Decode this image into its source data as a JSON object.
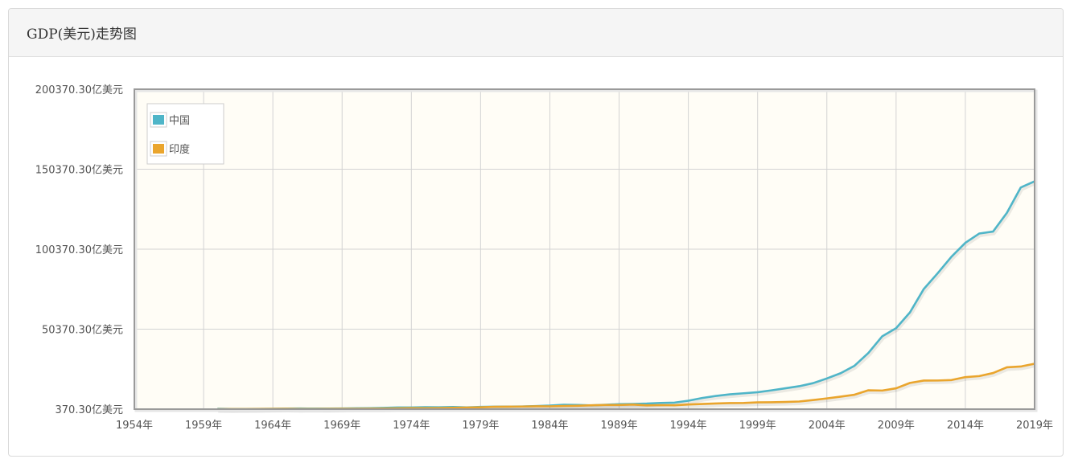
{
  "panel": {
    "title": "GDP(美元)走势图"
  },
  "colors": {
    "china": "#4fb5c8",
    "india": "#eaa52d",
    "plot_bg": "#fffdf6",
    "grid": "#d3d3d3"
  },
  "chart_data": {
    "type": "line",
    "title": "",
    "xlabel": "",
    "ylabel": "",
    "xlim": [
      1954,
      2019
    ],
    "ylim": [
      370.3,
      200370.3
    ],
    "grid": true,
    "legend_position": "top-left",
    "y_ticks": [
      {
        "value": 370.3,
        "label": "370.30亿美元"
      },
      {
        "value": 50370.3,
        "label": "50370.30亿美元"
      },
      {
        "value": 100370.3,
        "label": "100370.30亿美元"
      },
      {
        "value": 150370.3,
        "label": "150370.30亿美元"
      },
      {
        "value": 200370.3,
        "label": "200370.30亿美元"
      }
    ],
    "x_ticks": [
      {
        "value": 1954,
        "label": "1954年"
      },
      {
        "value": 1959,
        "label": "1959年"
      },
      {
        "value": 1964,
        "label": "1964年"
      },
      {
        "value": 1969,
        "label": "1969年"
      },
      {
        "value": 1974,
        "label": "1974年"
      },
      {
        "value": 1979,
        "label": "1979年"
      },
      {
        "value": 1984,
        "label": "1984年"
      },
      {
        "value": 1989,
        "label": "1989年"
      },
      {
        "value": 1994,
        "label": "1994年"
      },
      {
        "value": 1999,
        "label": "1999年"
      },
      {
        "value": 2004,
        "label": "2004年"
      },
      {
        "value": 2009,
        "label": "2009年"
      },
      {
        "value": 2014,
        "label": "2014年"
      },
      {
        "value": 2019,
        "label": "2019年"
      }
    ],
    "series": [
      {
        "name": "中国",
        "color": "#4fb5c8",
        "points": [
          [
            1960,
            597
          ],
          [
            1961,
            500
          ],
          [
            1962,
            472
          ],
          [
            1963,
            507
          ],
          [
            1964,
            592
          ],
          [
            1965,
            704
          ],
          [
            1966,
            767
          ],
          [
            1967,
            727
          ],
          [
            1968,
            708
          ],
          [
            1969,
            797
          ],
          [
            1970,
            926
          ],
          [
            1971,
            998
          ],
          [
            1972,
            1136
          ],
          [
            1973,
            1385
          ],
          [
            1974,
            1442
          ],
          [
            1975,
            1632
          ],
          [
            1976,
            1539
          ],
          [
            1977,
            1749
          ],
          [
            1978,
            1495
          ],
          [
            1979,
            1783
          ],
          [
            1980,
            1911
          ],
          [
            1981,
            1958
          ],
          [
            1982,
            2050
          ],
          [
            1983,
            2303
          ],
          [
            1984,
            2599
          ],
          [
            1985,
            3094
          ],
          [
            1986,
            3007
          ],
          [
            1987,
            2730
          ],
          [
            1988,
            3123
          ],
          [
            1989,
            3477
          ],
          [
            1990,
            3609
          ],
          [
            1991,
            3834
          ],
          [
            1992,
            4269
          ],
          [
            1993,
            4447
          ],
          [
            1994,
            5643
          ],
          [
            1995,
            7340
          ],
          [
            1996,
            8637
          ],
          [
            1997,
            9616
          ],
          [
            1998,
            10290
          ],
          [
            1999,
            10940
          ],
          [
            2000,
            12110
          ],
          [
            2001,
            13390
          ],
          [
            2002,
            14710
          ],
          [
            2003,
            16600
          ],
          [
            2004,
            19550
          ],
          [
            2005,
            22860
          ],
          [
            2006,
            27520
          ],
          [
            2007,
            35500
          ],
          [
            2008,
            45940
          ],
          [
            2009,
            51020
          ],
          [
            2010,
            60870
          ],
          [
            2011,
            75510
          ],
          [
            2012,
            85320
          ],
          [
            2013,
            95700
          ],
          [
            2014,
            104380
          ],
          [
            2015,
            110160
          ],
          [
            2016,
            111380
          ],
          [
            2017,
            123100
          ],
          [
            2018,
            138940
          ],
          [
            2019,
            142800
          ]
        ]
      },
      {
        "name": "印度",
        "color": "#eaa52d",
        "points": [
          [
            1960,
            370
          ],
          [
            1961,
            391
          ],
          [
            1962,
            421
          ],
          [
            1963,
            482
          ],
          [
            1964,
            560
          ],
          [
            1965,
            591
          ],
          [
            1966,
            459
          ],
          [
            1967,
            500
          ],
          [
            1968,
            528
          ],
          [
            1969,
            580
          ],
          [
            1970,
            624
          ],
          [
            1971,
            671
          ],
          [
            1972,
            712
          ],
          [
            1973,
            852
          ],
          [
            1974,
            994
          ],
          [
            1975,
            983
          ],
          [
            1976,
            1026
          ],
          [
            1977,
            1213
          ],
          [
            1978,
            1376
          ],
          [
            1979,
            1528
          ],
          [
            1980,
            1864
          ],
          [
            1981,
            1934
          ],
          [
            1982,
            2005
          ],
          [
            1983,
            2180
          ],
          [
            1984,
            2124
          ],
          [
            1985,
            2324
          ],
          [
            1986,
            2487
          ],
          [
            1987,
            2798
          ],
          [
            1988,
            2965
          ],
          [
            1989,
            2961
          ],
          [
            1990,
            3206
          ],
          [
            1991,
            2705
          ],
          [
            1992,
            2882
          ],
          [
            1993,
            2795
          ],
          [
            1994,
            3275
          ],
          [
            1995,
            3603
          ],
          [
            1996,
            3928
          ],
          [
            1997,
            4156
          ],
          [
            1998,
            4213
          ],
          [
            1999,
            4586
          ],
          [
            2000,
            4683
          ],
          [
            2001,
            4854
          ],
          [
            2002,
            5149
          ],
          [
            2003,
            6076
          ],
          [
            2004,
            7091
          ],
          [
            2005,
            8203
          ],
          [
            2006,
            9402
          ],
          [
            2007,
            12167
          ],
          [
            2008,
            11987
          ],
          [
            2009,
            13417
          ],
          [
            2010,
            16757
          ],
          [
            2011,
            18231
          ],
          [
            2012,
            18276
          ],
          [
            2013,
            18567
          ],
          [
            2014,
            20391
          ],
          [
            2015,
            21036
          ],
          [
            2016,
            22947
          ],
          [
            2017,
            26515
          ],
          [
            2018,
            27019
          ],
          [
            2019,
            28751
          ]
        ]
      }
    ]
  }
}
